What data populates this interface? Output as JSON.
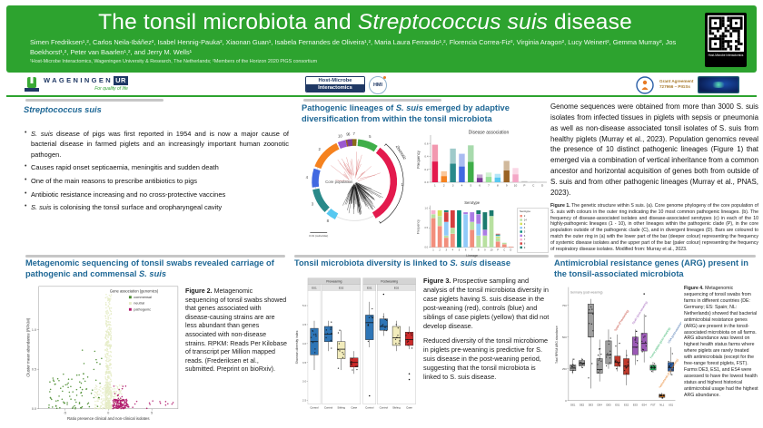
{
  "header": {
    "title_prefix": "The tonsil microbiota and ",
    "title_italic": "Streptococcus suis",
    "title_suffix": " disease",
    "authors": "Simen Fredriksen¹,², Carlos Neila-Ibáñez², Isabel Hennig-Pauka², Xiaonan Guan¹, Isabela Fernandes de Oliveira¹,², Maria Laura Ferrando¹,², Florencia Correa-Fiz², Virginia Aragon², Lucy Weinert², Gemma Murray², Jos Boekhorst¹,²,  Peter van Baarlen¹,², and Jerry M. Wells¹",
    "affiliations": "¹Host-Microbe Interactomics, Wageningen University & Research, The Netherlands; ²Members of the Horizon 2020 PIGS consortium",
    "qr_caption": "Host-Microbe Interactomics"
  },
  "logos": {
    "wageningen_text": "WAGENINGEN",
    "wageningen_ur": "UR",
    "wageningen_tagline": "For quality of life",
    "hmi_line1": "Host-Microbe",
    "hmi_line2": "Interactomics",
    "hmi_circle": "HMI",
    "grant_line1": "Grant Agreement",
    "grant_line2": "727966 – PIGSs"
  },
  "sections": {
    "s_suis": {
      "heading": "Streptococcus suis",
      "bullets": [
        {
          "it": "S. suis",
          "text": " disease of pigs was first reported in 1954 and is now a major cause of bacterial disease in farmed piglets and an increasingly important human zoonotic pathogen."
        },
        {
          "it": "",
          "text": "Causes rapid onset septicaemia, meningitis and sudden death"
        },
        {
          "it": "",
          "text": "One of the main reasons to prescribe antibiotics to pigs"
        },
        {
          "it": "",
          "text": "Antibiotic resistance increasing and no cross-protective vaccines"
        },
        {
          "it": "S. suis",
          "text": " is colonising the tonsil surface and oropharyngeal cavity"
        }
      ]
    },
    "lineages": {
      "heading_pre": "Pathogenic lineages of ",
      "heading_it": "S. suis",
      "heading_post": " emerged by adaptive diversification from within the tonsil microbiota"
    },
    "genome": {
      "paragraph": "Genome sequences were obtained from more than 3000 S. suis isolates from infected tissues in piglets with sepsis or pneumonia as well as non-disease associated tonsil isolates of S. suis from healthy piglets (Murray et al., 2023). Population genomics reveal the presence of 10 distinct pathogenic lineages (Figure 1) that emerged via a combination of vertical inheritance from a common ancestor and horizontal acquisition of genes both from outside of S. suis and from other pathogenic lineages (Murray et al., PNAS, 2023).",
      "cap_label": "Figure 1.",
      "cap_text": "The genetic structure within S suis. (a). Core genome phylogeny of the core population of S. suis with colours in the outer ring indicating the 10 most common pathogenic lineages. (b). The frequency of disease-associated isolates and disease-associated serotypes (c) in each of the 10 highly-pathogenic lineages (1 - 10), in other lineages within the pathogenic clade (P), in the core population outside of the pathogenic clade (C), and in divergent lineages (D). Bars are coloured to match the outer ring in (a) with the lower part of the bar (deeper colour) representing the frequency of systemic disease isolates and the upper part of the bar (paler colour) representing the frequency of respiratory disease isolates. Modified from:  Murray et al., 2023."
    },
    "metagenomic": {
      "heading_pre": "Metagenomic sequencing of tonsil swabs revealed carriage of pathogenic and commensal ",
      "heading_it": "S. suis",
      "cap_label": "Figure 2.",
      "cap_text": "Metagenomic sequencing of tonsil swabs showed that genes associated with disease-causing strains are are less abundant than genes associated with non-disease strains. RPKM: Reads Per Kilobase of transcript per Million mapped reads. (Frederiksen et al., submitted. Preprint on bioRxiv)."
    },
    "diversity": {
      "heading_pre": "Tonsil microbiota diversity is linked to ",
      "heading_it": "S. suis",
      "heading_post": " disease",
      "cap_label": "Figure 3.",
      "cap_text": "Prospective sampling and analysis of the tonsil microbiota diversity in case piglets having S. suis disease in the post-weaning (red), controls (blue) and siblings of case piglets (yellow) that did not develop disease.",
      "para2": "Reduced diversity of the tonsil microbiome in piglets pre-weaning is predictive for S. suis disease in the post-weaning period, suggesting that the tonsil microbiota is linked to S. suis disease."
    },
    "arg": {
      "heading": "Antimicrobial resistance genes (ARG) present in the tonsil-associated microbiota",
      "cap_label": "Figure 4.",
      "cap_text": "Metagenomic sequencing of tonsil swabs from farms in different countries (DE: Germany; ES: Spain; NL: Netherlands) showed that bacterial antimicrobial resistance genes (ARG) are present in the tonsil-associated microbiota on all farms. ARG abundance was lowest on highest health status farms where where piglets are rarely treated with antimicrobials (except for the free-range forest piglets, FST). Farms DE3, ES1, and ES4 were assessed to have the lowest health status and highest historical antimicrobial usage had the highest ARG abundance."
    }
  },
  "chart_data": [
    {
      "id": "fig1a",
      "type": "other",
      "subtype": "circular-phylogeny",
      "center_label": "Core population",
      "arc_label": "Zoonotic",
      "scale_label": "0.01 (subs/site)",
      "zoonotic_span": [
        40,
        148
      ],
      "segments": [
        {
          "label": "9",
          "color": "#9a6324",
          "start": -12,
          "end": -5
        },
        {
          "label": "7",
          "color": "#8a6d1a",
          "start": -4,
          "end": 3
        },
        {
          "label": "5",
          "color": "#3fae49",
          "start": 5,
          "end": 33
        },
        {
          "label": "1",
          "color": "#e31a4d",
          "start": 37,
          "end": 150
        },
        {
          "label": "8",
          "color": "#57c8f0",
          "start": 207,
          "end": 221
        },
        {
          "label": "3",
          "color": "#2a8a8a",
          "start": 224,
          "end": 259
        },
        {
          "label": "4",
          "color": "#4169e1",
          "start": 262,
          "end": 288
        },
        {
          "label": "2",
          "color": "#f5821f",
          "start": 291,
          "end": 335
        },
        {
          "label": "10",
          "color": "#9b59d0",
          "start": 337,
          "end": 348
        },
        {
          "label": "6",
          "color": "#7d3c98",
          "start": 350,
          "end": 357
        }
      ]
    },
    {
      "id": "fig1b",
      "type": "bar",
      "title": "Disease association",
      "ylabel": "Frequency",
      "categories": [
        "1",
        "2",
        "3",
        "4",
        "5",
        "6",
        "7",
        "8",
        "9",
        "10",
        "P",
        "C",
        "D"
      ],
      "values": [
        0.58,
        0.17,
        0.52,
        0.44,
        0.57,
        0.12,
        0.15,
        0.13,
        0.33,
        0.22,
        0.02,
        0.01,
        0.005
      ],
      "colors": [
        "#e31a4d",
        "#f5821f",
        "#2a8a8a",
        "#4169e1",
        "#3fae49",
        "#7d3c98",
        "#98e098",
        "#57c8f0",
        "#9a6324",
        "#f4a6c6",
        "#bbbbbb",
        "#bbbbbb",
        "#bbbbbb"
      ],
      "ylim": [
        0,
        0.7
      ],
      "yticks": [
        0,
        0.2,
        0.4,
        0.6
      ]
    },
    {
      "id": "fig1c",
      "type": "bar",
      "subtype": "stacked",
      "title": "Serotype",
      "xlabel": "Lineage",
      "ylabel": "Frequency",
      "legend_title": "Serotype",
      "categories": [
        "1",
        "2",
        "3",
        "4",
        "5",
        "6",
        "7",
        "8",
        "9",
        "10",
        "P",
        "C",
        "D"
      ],
      "ylim": [
        0,
        1.0
      ],
      "yticks": [
        0,
        0.5,
        1.0
      ],
      "serotypes": [
        {
          "name": "2",
          "color": "#f28e7c",
          "values": [
            0.75,
            0.55,
            0.25,
            0.35,
            0,
            0,
            0.45,
            0,
            0,
            0,
            0.15,
            0.08,
            0.02
          ]
        },
        {
          "name": "14",
          "color": "#b8e0a0",
          "values": [
            0.1,
            0.25,
            0.05,
            0.15,
            0,
            0,
            0.2,
            0.3,
            0.3,
            0.8,
            0.1,
            0.04,
            0
          ]
        },
        {
          "name": "3",
          "color": "#d4e157",
          "values": [
            0,
            0.15,
            0,
            0,
            0,
            0,
            0,
            0,
            0,
            0,
            0.03,
            0,
            0
          ]
        },
        {
          "name": "4",
          "color": "#90caf9",
          "values": [
            0,
            0,
            0.35,
            0,
            0,
            0.85,
            0,
            0.3,
            0,
            0,
            0.02,
            0,
            0
          ]
        },
        {
          "name": "5",
          "color": "#00897b",
          "values": [
            0,
            0,
            0,
            0,
            0.95,
            0,
            0,
            0,
            0,
            0,
            0.03,
            0,
            0
          ]
        },
        {
          "name": "6",
          "color": "#ab7ce4",
          "values": [
            0,
            0,
            0,
            0,
            0,
            0.05,
            0.25,
            0.25,
            0.15,
            0,
            0,
            0,
            0
          ]
        },
        {
          "name": "7",
          "color": "#f8b3d0",
          "values": [
            0.1,
            0,
            0,
            0,
            0,
            0,
            0,
            0,
            0,
            0,
            0,
            0,
            0
          ]
        },
        {
          "name": "8",
          "color": "#d43f3f",
          "values": [
            0,
            0,
            0.25,
            0.45,
            0,
            0,
            0,
            0,
            0,
            0,
            0.02,
            0,
            0
          ]
        },
        {
          "name": "9",
          "color": "#1b7a6e",
          "values": [
            0,
            0,
            0.05,
            0,
            0,
            0,
            0,
            0.1,
            0.45,
            0.15,
            0,
            0,
            0
          ]
        }
      ]
    },
    {
      "id": "fig2",
      "type": "scatter",
      "legend_title": "Gene association (genomics)",
      "xlabel": "Ratio presence clinical and non-clinical isolates",
      "ylabel": "Cluster mean abundance (RPKM)",
      "xlim": [
        -8,
        8
      ],
      "ylim": [
        0,
        1.55
      ],
      "xticks": [
        -5,
        0,
        5
      ],
      "yticks": [
        0,
        0.5,
        1.0
      ],
      "series": [
        {
          "name": "commensal",
          "color": "#4a8c2f",
          "clusters": [
            {
              "x": [
                -7,
                -0.8
              ],
              "y": [
                0,
                0.45
              ],
              "n": 85,
              "bias": 1.4
            },
            {
              "x": [
                -3,
                -0.5
              ],
              "y": [
                0.45,
                0.75
              ],
              "n": 8,
              "bias": 1
            }
          ]
        },
        {
          "name": "neutral",
          "color": "#e6ecc6",
          "clusters": [
            {
              "x": [
                -0.35,
                0.35
              ],
              "y": [
                0,
                1.45
              ],
              "n": 430,
              "bias": 1.7
            },
            {
              "x": [
                -1.6,
                1.6
              ],
              "y": [
                0,
                0.3
              ],
              "n": 170,
              "bias": 1.3
            }
          ]
        },
        {
          "name": "pathogenic",
          "color": "#b0176b",
          "clusters": [
            {
              "x": [
                0.5,
                2.4
              ],
              "y": [
                0,
                0.12
              ],
              "n": 130,
              "bias": 1
            },
            {
              "x": [
                2.4,
                7.6
              ],
              "y": [
                0,
                0.1
              ],
              "n": 14,
              "bias": 1
            },
            {
              "x": [
                0.6,
                2.2
              ],
              "y": [
                0.12,
                0.3
              ],
              "n": 12,
              "bias": 1
            }
          ]
        }
      ]
    },
    {
      "id": "fig3",
      "type": "box",
      "ylabel": "Shannon diversity index",
      "ylim": [
        2.4,
        5.4
      ],
      "yticks": [
        2.5,
        3.0,
        3.5,
        4.0,
        4.5,
        5.0
      ],
      "facets": [
        {
          "label": "Preweaning",
          "panels": [
            {
              "label": "E01",
              "boxes": [
                {
                  "x": "Control",
                  "color": "#2e75b6",
                  "q1": 3.7,
                  "med": 4.05,
                  "q3": 4.4,
                  "lo": 3.3,
                  "hi": 4.6
                }
              ]
            },
            {
              "label": "E02",
              "boxes": [
                {
                  "x": "Control",
                  "color": "#2e75b6",
                  "q1": 4.05,
                  "med": 4.25,
                  "q3": 4.45,
                  "lo": 3.8,
                  "hi": 4.6
                },
                {
                  "x": "Sibling",
                  "color": "#f2ecbc",
                  "q1": 3.6,
                  "med": 3.85,
                  "q3": 4.05,
                  "lo": 3.3,
                  "hi": 4.35
                },
                {
                  "x": "Case",
                  "color": "#cc2a2a",
                  "q1": 3.38,
                  "med": 3.5,
                  "q3": 3.62,
                  "lo": 3.2,
                  "hi": 3.8
                }
              ]
            }
          ]
        },
        {
          "label": "Postweaning",
          "panels": [
            {
              "label": "E01",
              "boxes": [
                {
                  "x": "Control",
                  "color": "#2e75b6",
                  "q1": 4.1,
                  "med": 4.55,
                  "q3": 4.75,
                  "lo": 3.9,
                  "hi": 5.1,
                  "outliers": [
                    2.62
                  ]
                }
              ]
            },
            {
              "label": "E02",
              "boxes": [
                {
                  "x": "Control",
                  "color": "#2e75b6",
                  "q1": 4.35,
                  "med": 4.45,
                  "q3": 4.65,
                  "lo": 4.2,
                  "hi": 4.8,
                  "outliers": [
                    5.3
                  ]
                },
                {
                  "x": "Sibling",
                  "color": "#f2ecbc",
                  "q1": 3.95,
                  "med": 4.15,
                  "q3": 4.45,
                  "lo": 3.8,
                  "hi": 4.6
                },
                {
                  "x": "Case",
                  "color": "#cc2a2a",
                  "q1": 3.95,
                  "med": 4.1,
                  "q3": 4.3,
                  "lo": 3.85,
                  "hi": 4.45,
                  "outliers": [
                    3.2,
                    3.05
                  ]
                }
              ]
            }
          ]
        }
      ]
    },
    {
      "id": "fig4",
      "type": "box",
      "ylabel": "Total RPKM ARG abundance",
      "ylim": [
        0,
        880
      ],
      "yticks": [
        0,
        250,
        500,
        750
      ],
      "categories": [
        "DE1",
        "DE2",
        "DE3",
        "DE4",
        "DE5",
        "ES1",
        "ES2",
        "ES3",
        "ES4",
        "FST",
        "NL1",
        "US1"
      ],
      "boxes": [
        {
          "color": "#9e9e9e",
          "q1": 235,
          "med": 255,
          "q3": 280,
          "lo": 210,
          "hi": 330
        },
        {
          "color": "#9e9e9e",
          "q1": 275,
          "med": 295,
          "q3": 315,
          "lo": 255,
          "hi": 335
        },
        {
          "color": "#9e9e9e",
          "q1": 500,
          "med": 690,
          "q3": 760,
          "lo": 95,
          "hi": 800
        },
        {
          "color": "#9e9e9e",
          "q1": 215,
          "med": 245,
          "q3": 330,
          "lo": 150,
          "hi": 480
        },
        {
          "color": "#9e9e9e",
          "q1": 290,
          "med": 360,
          "q3": 470,
          "lo": 250,
          "hi": 560
        },
        {
          "color": "#c0392b",
          "q1": 270,
          "med": 300,
          "q3": 350,
          "lo": 230,
          "hi": 520
        },
        {
          "color": "#c0392b",
          "q1": 205,
          "med": 270,
          "q3": 330,
          "lo": 120,
          "hi": 400
        },
        {
          "color": "#9b59b6",
          "q1": 360,
          "med": 420,
          "q3": 500,
          "lo": 280,
          "hi": 560
        },
        {
          "color": "#9b59b6",
          "q1": 390,
          "med": 450,
          "q3": 530,
          "lo": 300,
          "hi": 680,
          "outliers": [
            840
          ]
        },
        {
          "color": "#27ae60",
          "q1": 240,
          "med": 258,
          "q3": 278,
          "lo": 220,
          "hi": 305
        },
        {
          "color": "#e67e22",
          "q1": 25,
          "med": 35,
          "q3": 48,
          "lo": 15,
          "hi": 62
        },
        {
          "color": "#2e5fa3",
          "q1": 232,
          "med": 260,
          "q3": 300,
          "lo": 200,
          "hi": 420
        }
      ],
      "group_labels": [
        {
          "text": "Germany (post-weaning)",
          "color": "#8a8a8a",
          "at": 0,
          "yv": 845,
          "rotate": false
        },
        {
          "text": "Spain (Preweaning)",
          "color": "#c0392b",
          "at": 5,
          "yv": 545,
          "rotate": true
        },
        {
          "text": "Spain (post-weaning)",
          "color": "#9b59b6",
          "at": 7,
          "yv": 600,
          "rotate": true
        },
        {
          "text": "Forest piglets (post-weaning)",
          "color": "#27ae60",
          "at": 9,
          "yv": 330,
          "rotate": true
        },
        {
          "text": "Netherlands (post-weaning)",
          "color": "#e67e22",
          "at": 10,
          "yv": 95,
          "rotate": true
        },
        {
          "text": "USA (post-weaning)",
          "color": "#2e5fa3",
          "at": 11,
          "yv": 450,
          "rotate": true
        }
      ]
    }
  ]
}
